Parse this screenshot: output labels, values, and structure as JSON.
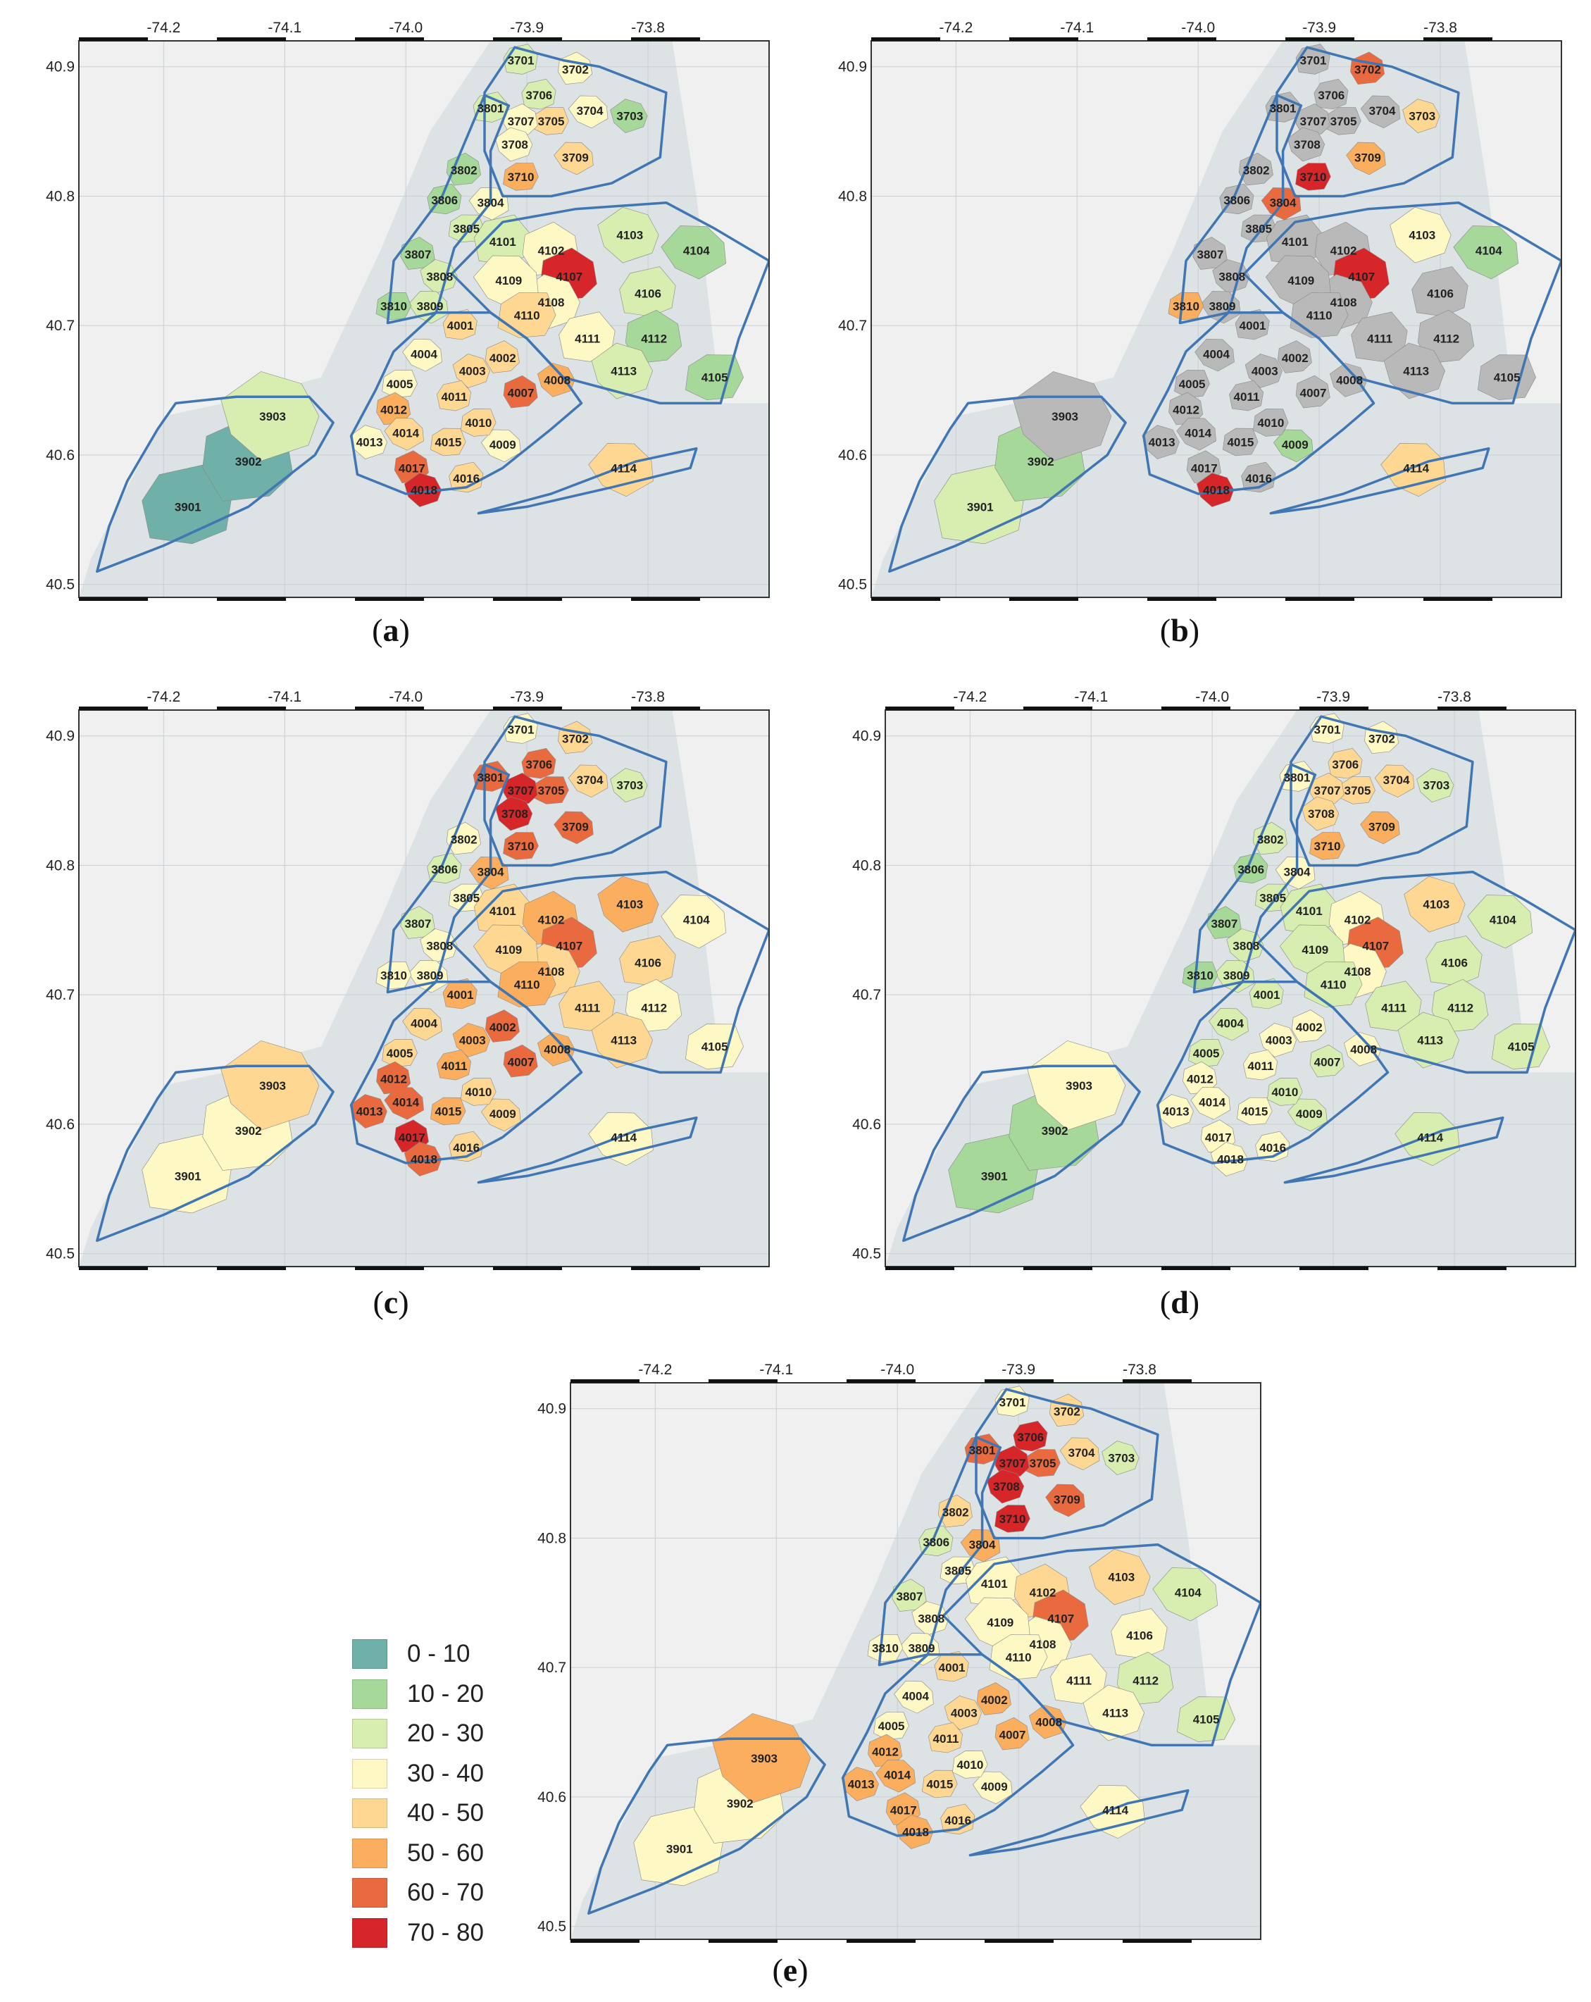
{
  "panels": [
    {
      "id": "a",
      "caption": "a",
      "top": {
        "lon_-74.2": "-74.2",
        "lon_-74.1": "-74.1",
        "lon_-74.0": "-74.0",
        "lon_-73.9": "-73.9",
        "lon_-73.8": "-73.8"
      },
      "left": {
        "lat_40.9": "40.9",
        "lat_40.8": "40.8",
        "lat_40.7": "40.7",
        "lat_40.6": "40.6",
        "lat_40.5": "40.5"
      },
      "highlight": {
        "3701": 2,
        "3702": 3,
        "3703": 1,
        "3704": 3,
        "3705": 4,
        "3706": 2,
        "3707": 3,
        "3708": 3,
        "3709": 4,
        "3710": 5,
        "3801": 2,
        "3802": 1,
        "3804": 3,
        "3805": 2,
        "3806": 1,
        "3807": 1,
        "3808": 2,
        "3809": 2,
        "3810": 1,
        "3901": 0,
        "3902": 0,
        "3903": 2,
        "4001": 4,
        "4002": 4,
        "4003": 4,
        "4004": 3,
        "4005": 3,
        "4007": 6,
        "4008": 5,
        "4009": 3,
        "4010": 4,
        "4011": 4,
        "4012": 5,
        "4013": 3,
        "4014": 4,
        "4015": 4,
        "4016": 4,
        "4017": 6,
        "4018": 7,
        "4101": 2,
        "4102": 3,
        "4103": 2,
        "4104": 1,
        "4105": 1,
        "4106": 2,
        "4107": 7,
        "4108": 3,
        "4109": 3,
        "4110": 4,
        "4111": 3,
        "4112": 1,
        "4113": 2,
        "4114": 4
      }
    },
    {
      "id": "b",
      "caption": "b",
      "top": {
        "lon_-74.2": "-74.2",
        "lon_-74.1": "-74.1",
        "lon_-74.0": "-74.0",
        "lon_-73.9": "-73.9",
        "lon_-73.8": "-73.8"
      },
      "left": {
        "lat_40.9": "40.9",
        "lat_40.8": "40.8",
        "lat_40.7": "40.7",
        "lat_40.6": "40.6",
        "lat_40.5": "40.5"
      },
      "highlight": {
        "3701": 8,
        "3702": 6,
        "3703": 4,
        "3704": 8,
        "3705": 8,
        "3706": 8,
        "3707": 8,
        "3708": 8,
        "3709": 5,
        "3710": 7,
        "3801": 8,
        "3802": 8,
        "3804": 6,
        "3805": 8,
        "3806": 8,
        "3807": 8,
        "3808": 8,
        "3809": 8,
        "3810": 5,
        "3901": 2,
        "3902": 1,
        "3903": 8,
        "4001": 8,
        "4002": 8,
        "4003": 8,
        "4004": 8,
        "4005": 8,
        "4007": 8,
        "4008": 8,
        "4009": 1,
        "4010": 8,
        "4011": 8,
        "4012": 8,
        "4013": 8,
        "4014": 8,
        "4015": 8,
        "4016": 8,
        "4017": 8,
        "4018": 7,
        "4101": 8,
        "4102": 8,
        "4103": 3,
        "4104": 1,
        "4105": 8,
        "4106": 8,
        "4107": 7,
        "4108": 8,
        "4109": 8,
        "4110": 8,
        "4111": 8,
        "4112": 8,
        "4113": 8,
        "4114": 4
      }
    },
    {
      "id": "c",
      "caption": "c",
      "top": {
        "lon_-74.2": "-74.2",
        "lon_-74.1": "-74.1",
        "lon_-74.0": "-74.0",
        "lon_-73.9": "-73.9",
        "lon_-73.8": "-73.8"
      },
      "left": {
        "lat_40.9": "40.9",
        "lat_40.8": "40.8",
        "lat_40.7": "40.7",
        "lat_40.6": "40.6",
        "lat_40.5": "40.5"
      },
      "highlight": {
        "3701": 3,
        "3702": 4,
        "3703": 2,
        "3704": 4,
        "3705": 6,
        "3706": 6,
        "3707": 7,
        "3708": 7,
        "3709": 6,
        "3710": 6,
        "3801": 6,
        "3802": 3,
        "3804": 5,
        "3805": 3,
        "3806": 2,
        "3807": 2,
        "3808": 3,
        "3809": 3,
        "3810": 3,
        "3901": 3,
        "3902": 3,
        "3903": 4,
        "4001": 5,
        "4002": 6,
        "4003": 5,
        "4004": 4,
        "4005": 4,
        "4007": 6,
        "4008": 5,
        "4009": 4,
        "4010": 4,
        "4011": 5,
        "4012": 6,
        "4013": 6,
        "4014": 6,
        "4015": 5,
        "4016": 4,
        "4017": 7,
        "4018": 6,
        "4101": 4,
        "4102": 5,
        "4103": 5,
        "4104": 3,
        "4105": 3,
        "4106": 4,
        "4107": 6,
        "4108": 4,
        "4109": 4,
        "4110": 5,
        "4111": 4,
        "4112": 3,
        "4113": 4,
        "4114": 3
      }
    },
    {
      "id": "d",
      "caption": "d",
      "top": {
        "lon_-74.2": "-74.2",
        "lon_-74.1": "-74.1",
        "lon_-74.0": "-74.0",
        "lon_-73.9": "-73.9",
        "lon_-73.8": "-73.8"
      },
      "left": {
        "lat_40.9": "40.9",
        "lat_40.8": "40.8",
        "lat_40.7": "40.7",
        "lat_40.6": "40.6",
        "lat_40.5": "40.5"
      },
      "highlight": {
        "3701": 3,
        "3702": 3,
        "3703": 2,
        "3704": 4,
        "3705": 4,
        "3706": 4,
        "3707": 4,
        "3708": 4,
        "3709": 5,
        "3710": 5,
        "3801": 3,
        "3802": 2,
        "3804": 3,
        "3805": 2,
        "3806": 1,
        "3807": 1,
        "3808": 2,
        "3809": 2,
        "3810": 1,
        "3901": 1,
        "3902": 1,
        "3903": 3,
        "4001": 2,
        "4002": 3,
        "4003": 3,
        "4004": 2,
        "4005": 2,
        "4007": 2,
        "4008": 3,
        "4009": 2,
        "4010": 2,
        "4011": 3,
        "4012": 3,
        "4013": 3,
        "4014": 3,
        "4015": 3,
        "4016": 3,
        "4017": 3,
        "4018": 3,
        "4101": 2,
        "4102": 3,
        "4103": 4,
        "4104": 2,
        "4105": 2,
        "4106": 2,
        "4107": 6,
        "4108": 3,
        "4109": 2,
        "4110": 2,
        "4111": 2,
        "4112": 2,
        "4113": 2,
        "4114": 2
      }
    },
    {
      "id": "e",
      "caption": "e",
      "top": {
        "lon_-74.2": "-74.2",
        "lon_-74.1": "-74.1",
        "lon_-74.0": "-74.0",
        "lon_-73.9": "-73.9",
        "lon_-73.8": "-73.8"
      },
      "left": {
        "lat_40.9": "40.9",
        "lat_40.8": "40.8",
        "lat_40.7": "40.7",
        "lat_40.6": "40.6",
        "lat_40.5": "40.5"
      },
      "highlight": {
        "3701": 3,
        "3702": 4,
        "3703": 2,
        "3704": 4,
        "3705": 6,
        "3706": 7,
        "3707": 7,
        "3708": 7,
        "3709": 6,
        "3710": 7,
        "3801": 6,
        "3802": 4,
        "3804": 5,
        "3805": 3,
        "3806": 2,
        "3807": 2,
        "3808": 3,
        "3809": 3,
        "3810": 3,
        "3901": 3,
        "3902": 3,
        "3903": 5,
        "4001": 4,
        "4002": 5,
        "4003": 4,
        "4004": 3,
        "4005": 3,
        "4007": 5,
        "4008": 5,
        "4009": 3,
        "4010": 3,
        "4011": 4,
        "4012": 5,
        "4013": 5,
        "4014": 5,
        "4015": 4,
        "4016": 4,
        "4017": 5,
        "4018": 5,
        "4101": 3,
        "4102": 4,
        "4103": 4,
        "4104": 2,
        "4105": 2,
        "4106": 3,
        "4107": 6,
        "4108": 3,
        "4109": 3,
        "4110": 3,
        "4111": 3,
        "4112": 2,
        "4113": 3,
        "4114": 3
      }
    }
  ],
  "districts": {
    "3701": "3701",
    "3702": "3702",
    "3703": "3703",
    "3704": "3704",
    "3705": "3705",
    "3706": "3706",
    "3707": "3707",
    "3708": "3708",
    "3709": "3709",
    "3710": "3710",
    "3801": "3801",
    "3802": "3802",
    "3804": "3804",
    "3805": "3805",
    "3806": "3806",
    "3807": "3807",
    "3808": "3808",
    "3809": "3809",
    "3810": "3810",
    "3901": "3901",
    "3902": "3902",
    "3903": "3903",
    "4001": "4001",
    "4002": "4002",
    "4003": "4003",
    "4004": "4004",
    "4005": "4005",
    "4007": "4007",
    "4008": "4008",
    "4009": "4009",
    "4010": "4010",
    "4011": "4011",
    "4012": "4012",
    "4013": "4013",
    "4014": "4014",
    "4015": "4015",
    "4016": "4016",
    "4017": "4017",
    "4018": "4018",
    "4101": "4101",
    "4102": "4102",
    "4103": "4103",
    "4104": "4104",
    "4105": "4105",
    "4106": "4106",
    "4107": "4107",
    "4108": "4108",
    "4109": "4109",
    "4110": "4110",
    "4111": "4111",
    "4112": "4112",
    "4113": "4113",
    "4114": "4114"
  },
  "legend": {
    "items": [
      {
        "label": "0 - 10",
        "color": "#6fb0a8"
      },
      {
        "label": "10 - 20",
        "color": "#a6d89a"
      },
      {
        "label": "20 - 30",
        "color": "#d8eeb0"
      },
      {
        "label": "30 - 40",
        "color": "#fdf8c4"
      },
      {
        "label": "40 - 50",
        "color": "#fed893"
      },
      {
        "label": "50 - 60",
        "color": "#fbaf5e"
      },
      {
        "label": "60 - 70",
        "color": "#ea6a3f"
      },
      {
        "label": "70 - 80",
        "color": "#d7262a"
      }
    ],
    "nodata_color": "#b9b9b9"
  },
  "colors": {
    "water": "#dde2e5",
    "land": "#eff0ef",
    "boundary": "#3f76b3"
  }
}
